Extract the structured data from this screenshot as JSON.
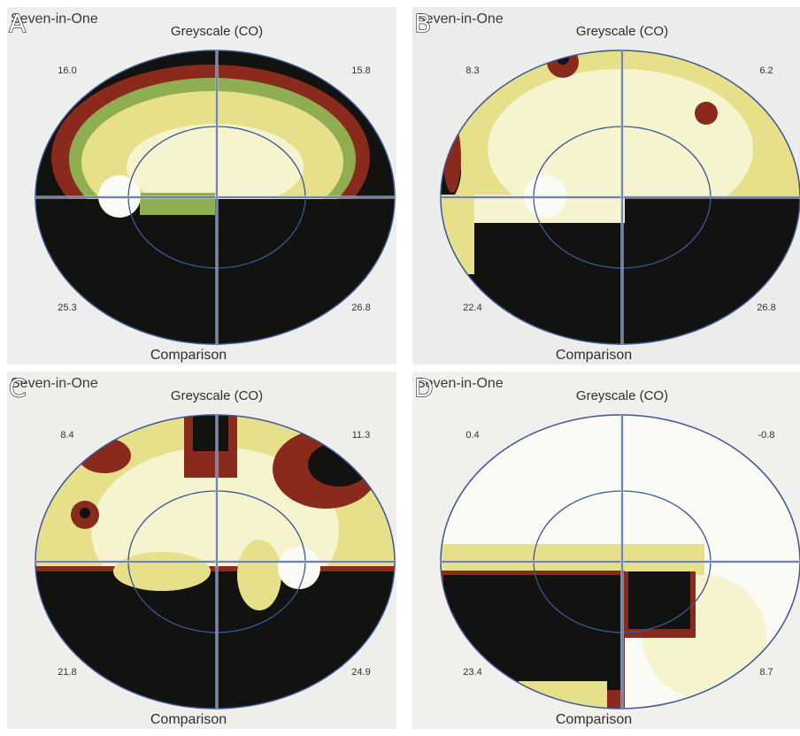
{
  "panels": [
    {
      "label": "A",
      "header": "Seven-in-One",
      "title": "Greyscale (CO)",
      "quadrants": [
        "16.0",
        "15.8",
        "25.3",
        "26.8"
      ],
      "footer": "Comparison"
    },
    {
      "label": "B",
      "header": "Seven-in-One",
      "title": "Greyscale (CO)",
      "quadrants": [
        "8.3",
        "6.2",
        "22.4",
        "26.8"
      ],
      "footer": "Comparison"
    },
    {
      "label": "C",
      "header": "Seven-in-One",
      "title": "Greyscale (CO)",
      "quadrants": [
        "8.4",
        "11.3",
        "21.8",
        "24.9"
      ],
      "footer": "Comparison"
    },
    {
      "label": "D",
      "header": "Seven-in-One",
      "title": "Greyscale (CO)",
      "quadrants": [
        "0.4",
        "-0.8",
        "23.4",
        "8.7"
      ],
      "footer": "Comparison"
    }
  ]
}
